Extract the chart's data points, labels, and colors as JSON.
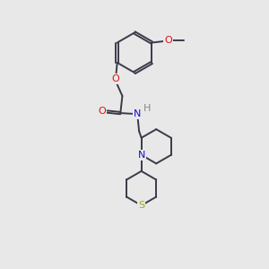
{
  "bg_color": "#e8e8e8",
  "bond_color": "#3a3a4a",
  "atom_colors": {
    "O": "#dd1010",
    "N": "#1010dd",
    "S": "#aaaa00",
    "H": "#888888"
  },
  "fig_width": 3.0,
  "fig_height": 3.0,
  "dpi": 100
}
